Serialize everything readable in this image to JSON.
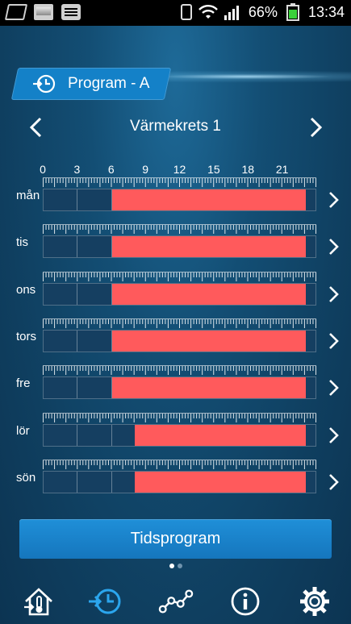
{
  "status_bar": {
    "battery_percent": "66%",
    "time": "13:34"
  },
  "program_tab": {
    "label": "Program - A",
    "icon": "clock-arrow-icon"
  },
  "circuit": {
    "title": "Värmekrets 1",
    "prev_icon": "chevron-left-icon",
    "next_icon": "chevron-right-icon"
  },
  "hours": [
    "0",
    "3",
    "6",
    "9",
    "12",
    "15",
    "18",
    "21"
  ],
  "days": [
    {
      "label": "mån",
      "heat_start_h": 6,
      "heat_end_h": 23
    },
    {
      "label": "tis",
      "heat_start_h": 6,
      "heat_end_h": 23
    },
    {
      "label": "ons",
      "heat_start_h": 6,
      "heat_end_h": 23
    },
    {
      "label": "tors",
      "heat_start_h": 6,
      "heat_end_h": 23
    },
    {
      "label": "fre",
      "heat_start_h": 6,
      "heat_end_h": 23
    },
    {
      "label": "lör",
      "heat_start_h": 8,
      "heat_end_h": 23
    },
    {
      "label": "sön",
      "heat_start_h": 8,
      "heat_end_h": 23
    }
  ],
  "colors": {
    "heat": "#ff5a5c",
    "track": "#153f61",
    "accent": "#1481c8"
  },
  "button": {
    "label": "Tidsprogram"
  },
  "pager": {
    "count": 2,
    "active": 0
  },
  "bottom_nav": [
    {
      "icon": "house-thermometer-icon",
      "active": false
    },
    {
      "icon": "clock-arrow-icon",
      "active": true
    },
    {
      "icon": "chart-line-icon",
      "active": false
    },
    {
      "icon": "info-icon",
      "active": false
    },
    {
      "icon": "gear-icon",
      "active": false
    }
  ]
}
